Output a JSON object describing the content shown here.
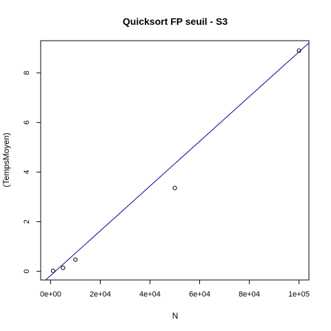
{
  "chart_data": {
    "type": "scatter",
    "title": "Quicksort FP seuil - S3",
    "xlabel": "N",
    "ylabel": "(TempsMoyen)",
    "xlim": [
      -4000,
      104000
    ],
    "ylim": [
      -0.35,
      9.3
    ],
    "x_ticks": [
      0,
      20000,
      40000,
      60000,
      80000,
      100000
    ],
    "x_tick_labels": [
      "0e+00",
      "2e+04",
      "4e+04",
      "6e+04",
      "8e+04",
      "1e+05"
    ],
    "y_ticks": [
      0,
      2,
      4,
      6,
      8
    ],
    "y_tick_labels": [
      "0",
      "2",
      "4",
      "6",
      "8"
    ],
    "grid": false,
    "legend": "none",
    "points": {
      "x": [
        1000,
        5000,
        10000,
        50000,
        100000
      ],
      "y": [
        0.02,
        0.14,
        0.47,
        3.36,
        8.9
      ]
    },
    "fit_line": {
      "intercept": -0.17,
      "slope": 9.02e-05,
      "color": "#00008b"
    },
    "point_color": "#000000"
  }
}
